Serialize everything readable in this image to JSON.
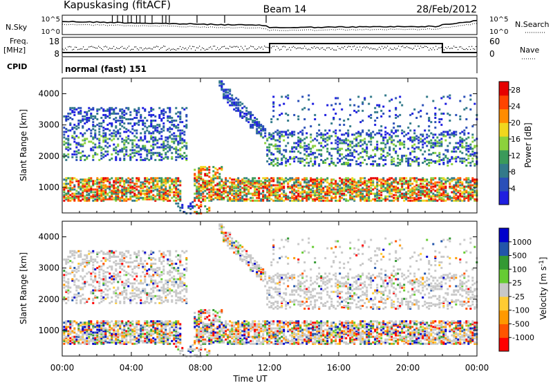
{
  "header": {
    "station": "Kapuskasing (fitACF)",
    "beam": "Beam 14",
    "date": "28/Feb/2012"
  },
  "noise_panel": {
    "left_label": "N.Sky",
    "right_label": "N.Search",
    "left_ticks": [
      "10^5",
      "10^0"
    ],
    "right_ticks": [
      "10^5",
      "10^0"
    ]
  },
  "freq_panel": {
    "left_label_line1": "Freq.",
    "left_label_line2": "[MHz]",
    "right_label": "Nave",
    "left_ticks": [
      "18",
      "8"
    ],
    "right_ticks": [
      "60",
      "0"
    ]
  },
  "cpid": {
    "label": "CPID",
    "value": "normal (fast) 151"
  },
  "colors": {
    "power": [
      "#1f1fe0",
      "#2a4fb8",
      "#337a8a",
      "#3a9a5a",
      "#8cd23c",
      "#f0d71e",
      "#ff8c00",
      "#ff4400",
      "#e60000"
    ],
    "velocity": [
      "#ff0000",
      "#ff5500",
      "#ff9900",
      "#ffcc33",
      "#c8c8c8",
      "#66cc33",
      "#339933",
      "#2255aa",
      "#0000cc"
    ],
    "ground_scatter": "#c8c8c8"
  },
  "chart_data": [
    {
      "type": "heatmap",
      "name": "power",
      "ylabel": "Slant Range [km]",
      "yticks": [
        1000,
        2000,
        3000,
        4000
      ],
      "ylim": [
        180,
        4500
      ],
      "xlim": [
        0,
        24
      ],
      "colorbar": {
        "label": "Power [dB]",
        "range": [
          0,
          30
        ],
        "ticks": [
          4,
          8,
          12,
          16,
          20,
          24,
          28
        ]
      }
    },
    {
      "type": "heatmap",
      "name": "velocity",
      "ylabel": "Slant Range [km]",
      "yticks": [
        1000,
        2000,
        3000,
        4000
      ],
      "ylim": [
        180,
        4500
      ],
      "xlim": [
        0,
        24
      ],
      "xlabel": "Time UT",
      "xticks": [
        {
          "t": 0,
          "label": "00:00"
        },
        {
          "t": 4,
          "label": "04:00"
        },
        {
          "t": 8,
          "label": "08:00"
        },
        {
          "t": 12,
          "label": "12:00"
        },
        {
          "t": 16,
          "label": "16:00"
        },
        {
          "t": 20,
          "label": "20:00"
        },
        {
          "t": 24,
          "label": "00:00"
        }
      ],
      "colorbar": {
        "label": "Velocity [m s^-1]",
        "ticks": [
          "1000",
          "500",
          "100",
          "25",
          "-25",
          "-100",
          "-500",
          "-1000"
        ]
      }
    }
  ]
}
